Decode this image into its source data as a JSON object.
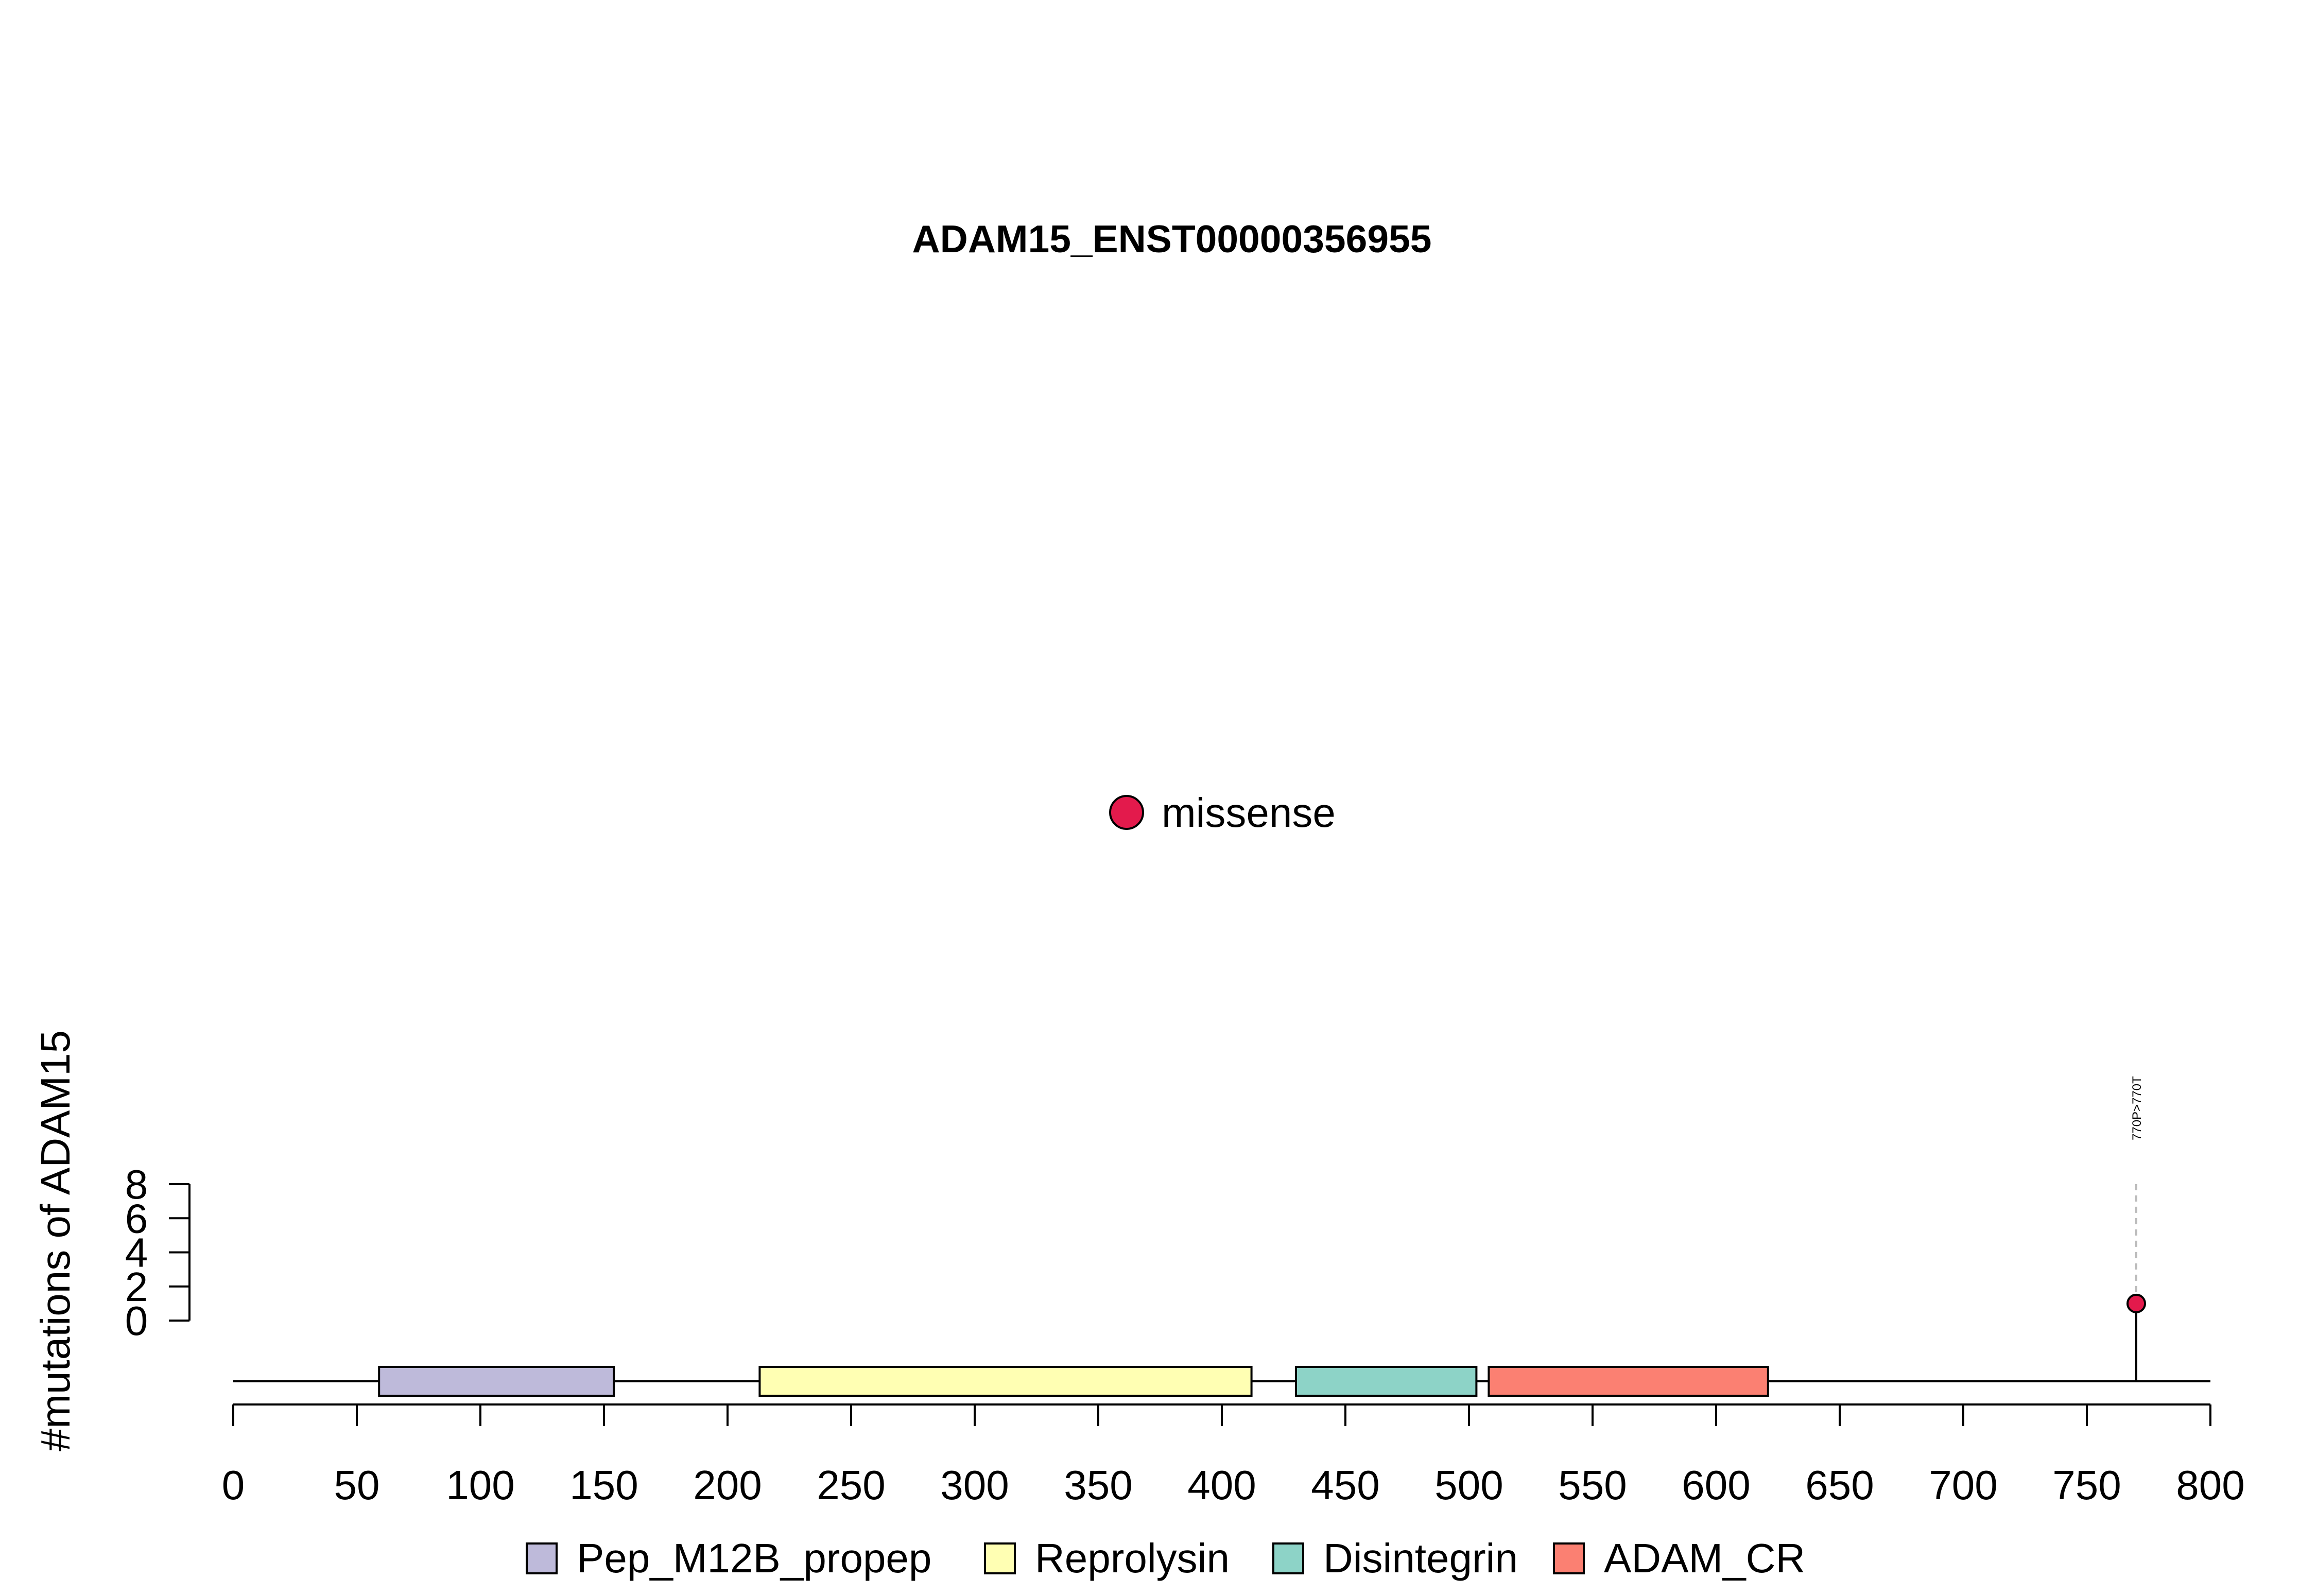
{
  "chart_data": {
    "type": "lollipop",
    "title": "ADAM15_ENST00000356955",
    "ylabel": "#mutations of ADAM15",
    "xlabel": "",
    "xlim": [
      0,
      800
    ],
    "x_ticks": [
      0,
      50,
      100,
      150,
      200,
      250,
      300,
      350,
      400,
      450,
      500,
      550,
      600,
      650,
      700,
      750,
      800
    ],
    "ylim": [
      0,
      8
    ],
    "y_ticks": [
      0,
      2,
      4,
      6,
      8
    ],
    "protein_length": 800,
    "domains": [
      {
        "name": "Pep_M12B_propep",
        "start": 59,
        "end": 154,
        "color": "#BEBADA"
      },
      {
        "name": "Reprolysin",
        "start": 213,
        "end": 412,
        "color": "#FFFFB3"
      },
      {
        "name": "Disintegrin",
        "start": 430,
        "end": 503,
        "color": "#8DD3C7"
      },
      {
        "name": "ADAM_CR",
        "start": 508,
        "end": 621,
        "color": "#FB8072"
      }
    ],
    "mutation_types": [
      {
        "name": "missense",
        "color": "#E31A4C"
      }
    ],
    "mutations": [
      {
        "position": 770,
        "count": 1,
        "label": "770P>770T",
        "type": "missense"
      }
    ]
  }
}
